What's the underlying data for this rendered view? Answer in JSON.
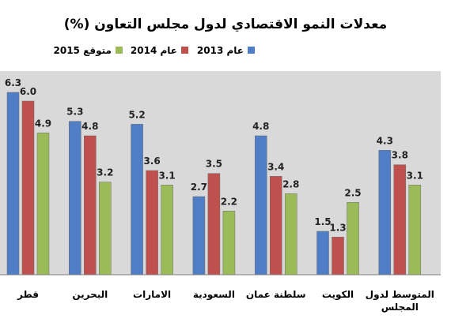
{
  "chart_data": {
    "type": "bar",
    "title": "معدلات النمو الاقتصادي لدول مجلس التعاون (%)",
    "categories": [
      "قطر",
      "البحرين",
      "الامارات",
      "السعودية",
      "سلطنة عمان",
      "الكويت",
      "المتوسط لدول المجلس"
    ],
    "series": [
      {
        "name": "عام 2013",
        "color": "#4F7EC6",
        "values": [
          6.3,
          5.3,
          5.2,
          2.7,
          4.8,
          1.5,
          4.3
        ]
      },
      {
        "name": "عام 2014",
        "color": "#C0504D",
        "values": [
          6.0,
          4.8,
          3.6,
          3.5,
          3.4,
          1.3,
          3.8
        ]
      },
      {
        "name": "متوقع 2015",
        "color": "#9BBB59",
        "values": [
          4.9,
          3.2,
          3.1,
          2.2,
          2.8,
          2.5,
          3.1
        ]
      }
    ],
    "ylim": [
      0,
      6.3
    ],
    "legend_position": "top",
    "grid": false,
    "plot_background": "#D9D9D9"
  }
}
